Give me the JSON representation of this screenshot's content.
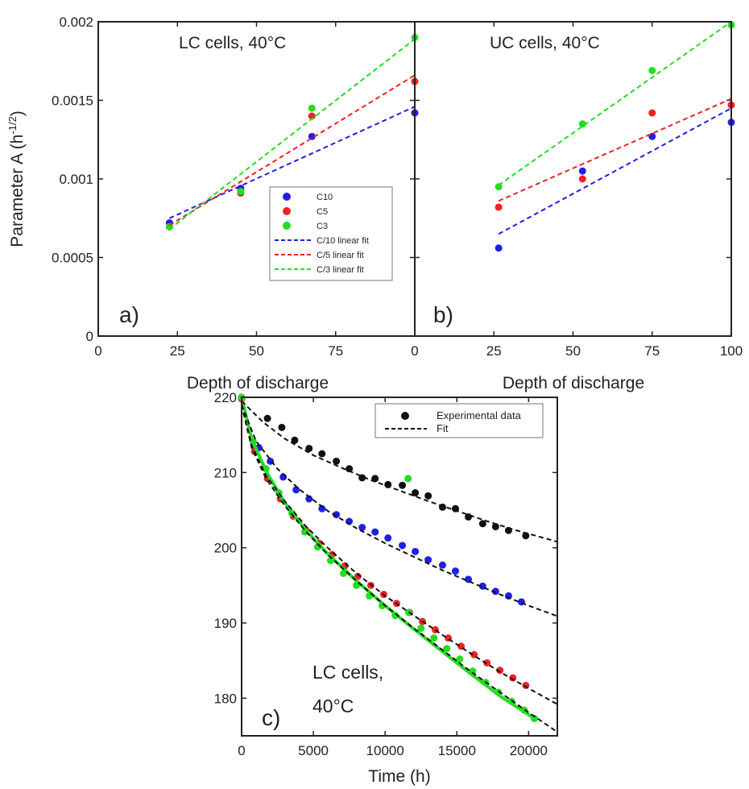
{
  "chart_data": [
    {
      "id": "a",
      "type": "scatter",
      "panel_label": "a)",
      "title": "LC cells, 40°C",
      "xlabel": "Depth of discharge",
      "ylabel": "Parameter A (h",
      "ylabel_sup": "-1/2",
      "ylabel_close": ")",
      "xlim": [
        0,
        100
      ],
      "ylim": [
        0,
        0.002
      ],
      "xticks": [
        0,
        25,
        50,
        75
      ],
      "xtick_labels": [
        "0",
        "25",
        "50",
        "75"
      ],
      "yticks": [
        0,
        0.0005,
        0.001,
        0.0015,
        0.002
      ],
      "ytick_labels": [
        "0",
        "0.0005",
        "0.001",
        "0.0015",
        "0.002"
      ],
      "legend_position": "center-right",
      "series": [
        {
          "name": "C10",
          "color": "#1f1fe6",
          "style": "points",
          "x": [
            22.5,
            45,
            67.5,
            100
          ],
          "y": [
            0.00072,
            0.00094,
            0.00127,
            0.00142
          ]
        },
        {
          "name": "C5",
          "color": "#ee2222",
          "style": "points",
          "x": [
            22.5,
            45,
            67.5,
            100
          ],
          "y": [
            0.000695,
            0.00091,
            0.0014,
            0.00162
          ]
        },
        {
          "name": "C3",
          "color": "#22dd22",
          "style": "points",
          "x": [
            22.5,
            45,
            67.5,
            100
          ],
          "y": [
            0.000695,
            0.00092,
            0.00145,
            0.0019
          ]
        },
        {
          "name": "C/10 linear fit",
          "color": "#1f1fe6",
          "style": "dashed",
          "x": [
            22.5,
            100
          ],
          "y": [
            0.00075,
            0.00146
          ]
        },
        {
          "name": "C/5 linear fit",
          "color": "#ee2222",
          "style": "dashed",
          "x": [
            22.5,
            100
          ],
          "y": [
            0.000705,
            0.00166
          ]
        },
        {
          "name": "C/3 linear fit",
          "color": "#22dd22",
          "style": "dashed",
          "x": [
            22.5,
            100
          ],
          "y": [
            0.00068,
            0.00189
          ]
        }
      ]
    },
    {
      "id": "b",
      "type": "scatter",
      "panel_label": "b)",
      "title": "UC cells, 40°C",
      "xlabel": "Depth of discharge",
      "xlim": [
        0,
        100
      ],
      "ylim": [
        0,
        0.002
      ],
      "xticks": [
        0,
        25,
        50,
        75,
        100
      ],
      "xtick_labels": [
        "0",
        "25",
        "50",
        "75",
        "100"
      ],
      "series": [
        {
          "name": "C10",
          "color": "#1f1fe6",
          "style": "points",
          "x": [
            26.5,
            53,
            75,
            100
          ],
          "y": [
            0.00056,
            0.00105,
            0.00127,
            0.00136
          ]
        },
        {
          "name": "C5",
          "color": "#ee2222",
          "style": "points",
          "x": [
            26.5,
            53,
            75,
            100
          ],
          "y": [
            0.00082,
            0.001,
            0.00142,
            0.00147
          ]
        },
        {
          "name": "C3",
          "color": "#22dd22",
          "style": "points",
          "x": [
            26.5,
            53,
            75,
            100
          ],
          "y": [
            0.00095,
            0.00135,
            0.00169,
            0.00198
          ]
        },
        {
          "name": "C/10 linear fit",
          "color": "#1f1fe6",
          "style": "dashed",
          "x": [
            26.5,
            100
          ],
          "y": [
            0.00065,
            0.00145
          ]
        },
        {
          "name": "C/5 linear fit",
          "color": "#ee2222",
          "style": "dashed",
          "x": [
            26.5,
            100
          ],
          "y": [
            0.00086,
            0.00151
          ]
        },
        {
          "name": "C/3 linear fit",
          "color": "#22dd22",
          "style": "dashed",
          "x": [
            26.5,
            100
          ],
          "y": [
            0.00096,
            0.002
          ]
        }
      ]
    },
    {
      "id": "c",
      "type": "scatter",
      "panel_label": "c)",
      "annotation_line1": "LC cells,",
      "annotation_line2": "40°C",
      "xlabel": "Time (h)",
      "xlim": [
        0,
        22000
      ],
      "ylim": [
        175,
        220
      ],
      "xticks": [
        0,
        5000,
        10000,
        15000,
        20000
      ],
      "xtick_labels": [
        "0",
        "5000",
        "10000",
        "15000",
        "20000"
      ],
      "yticks": [
        180,
        190,
        200,
        210,
        220
      ],
      "ytick_labels": [
        "180",
        "190",
        "200",
        "210",
        "220"
      ],
      "legend_position": "top-right",
      "legend": [
        {
          "label": "Experimental data",
          "color": "#111111",
          "style": "points"
        },
        {
          "label": "Fit",
          "color": "#111111",
          "style": "dashed"
        }
      ],
      "series": [
        {
          "color": "#111111",
          "style": "points",
          "x": [
            0,
            1800,
            2800,
            3700,
            4700,
            5600,
            6600,
            7500,
            8400,
            9300,
            10200,
            11200,
            12100,
            13000,
            14000,
            14900,
            15800,
            16800,
            17700,
            18600,
            19800
          ],
          "y": [
            220,
            217.2,
            216,
            214.3,
            213.2,
            212.5,
            211.5,
            210.5,
            209.3,
            209.2,
            208.4,
            208.3,
            207.3,
            206.9,
            205.4,
            205.2,
            204.1,
            203.2,
            202.8,
            202.3,
            201.6
          ]
        },
        {
          "color": "#1f1fe6",
          "style": "points",
          "x": [
            0,
            1200,
            2000,
            2900,
            3800,
            4700,
            5600,
            6600,
            7500,
            8400,
            9300,
            10200,
            11200,
            12100,
            13000,
            14000,
            14900,
            15800,
            16800,
            17700,
            18600,
            19500
          ],
          "y": [
            219.8,
            213.3,
            211.5,
            209.4,
            207.7,
            206.5,
            205.2,
            204.4,
            203.5,
            202.7,
            202.1,
            201.3,
            200.3,
            199.5,
            198.4,
            197.7,
            196.9,
            195.8,
            194.9,
            194.2,
            193.6,
            192.8
          ]
        },
        {
          "color": "#ee2222",
          "style": "points",
          "x": [
            0,
            900,
            1800,
            2700,
            3600,
            4500,
            5400,
            6300,
            7200,
            8100,
            9000,
            9900,
            10800,
            11700,
            12600,
            13500,
            14400,
            15300,
            16200,
            17100,
            18000,
            18900,
            19800
          ],
          "y": [
            219.8,
            212.8,
            209.2,
            206.5,
            204.2,
            202.3,
            200.6,
            199.1,
            197.6,
            196.2,
            195.0,
            193.8,
            192.6,
            191.4,
            190.2,
            189.1,
            188.0,
            186.9,
            185.8,
            184.7,
            183.7,
            182.7,
            181.7
          ]
        },
        {
          "color": "#22dd22",
          "style": "points",
          "x": [
            0,
            800,
            1700,
            2600,
            3500,
            4400,
            5300,
            6200,
            7100,
            8000,
            8900,
            9800,
            10700,
            11600,
            11650,
            12500,
            13400,
            14300,
            15200,
            16100,
            17000,
            17900,
            18800,
            19700,
            20400
          ],
          "y": [
            220,
            214.1,
            210.5,
            207.3,
            204.6,
            202.1,
            200.1,
            198.3,
            196.6,
            195.0,
            193.6,
            192.3,
            191.0,
            209.2,
            191.4,
            189.3,
            188.0,
            186.6,
            185.2,
            183.6,
            182.1,
            180.8,
            179.6,
            178.4,
            177.3
          ]
        },
        {
          "color": "#22dd22",
          "style": "solid",
          "x": [
            0,
            700,
            1700,
            3000,
            4500,
            6000,
            8000,
            10000,
            12000,
            14000,
            16000,
            18000,
            20500
          ],
          "y": [
            220,
            214.5,
            210.2,
            206.0,
            202.3,
            199.2,
            195.6,
            192.3,
            189.2,
            186.2,
            183.2,
            180.3,
            177.2
          ]
        },
        {
          "color": "#111111",
          "style": "dashed",
          "x": [
            0,
            1500,
            3000,
            5000,
            7000,
            9000,
            11000,
            13000,
            15000,
            17000,
            19000,
            22000
          ],
          "y": [
            219.5,
            216.7,
            214.5,
            212.3,
            210.6,
            209.0,
            207.6,
            206.2,
            204.9,
            203.6,
            202.4,
            200.8
          ]
        },
        {
          "color": "#111111",
          "style": "dashed",
          "x": [
            0,
            1000,
            2500,
            4000,
            6000,
            8000,
            10000,
            12000,
            14000,
            16000,
            18000,
            20000,
            22000
          ],
          "y": [
            219.0,
            214.2,
            210.5,
            207.8,
            204.9,
            202.6,
            200.6,
            198.8,
            197.0,
            195.4,
            193.8,
            192.3,
            190.9
          ]
        },
        {
          "color": "#111111",
          "style": "dashed",
          "x": [
            0,
            700,
            1700,
            3000,
            4500,
            6000,
            8000,
            10000,
            12000,
            14000,
            16000,
            18000,
            20000,
            22000
          ],
          "y": [
            219.0,
            213.6,
            209.6,
            206.2,
            202.8,
            200.0,
            196.6,
            193.6,
            191.0,
            188.4,
            185.9,
            183.5,
            181.3,
            179.2
          ]
        },
        {
          "color": "#111111",
          "style": "dashed",
          "x": [
            0,
            700,
            1700,
            3000,
            4500,
            6000,
            8000,
            10000,
            12000,
            14000,
            16000,
            18000,
            20000,
            22000
          ],
          "y": [
            219.0,
            213.3,
            209.2,
            205.6,
            202.1,
            199.1,
            195.6,
            192.3,
            189.3,
            186.4,
            183.5,
            180.8,
            178.1,
            175.5
          ]
        }
      ]
    }
  ]
}
